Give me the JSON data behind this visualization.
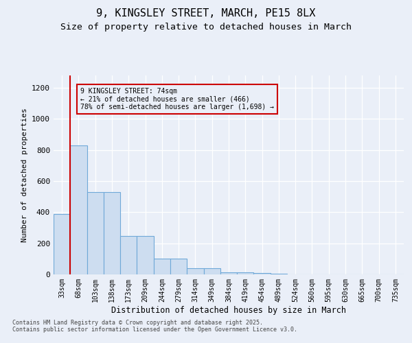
{
  "title1": "9, KINGSLEY STREET, MARCH, PE15 8LX",
  "title2": "Size of property relative to detached houses in March",
  "xlabel": "Distribution of detached houses by size in March",
  "ylabel": "Number of detached properties",
  "categories": [
    "33sqm",
    "68sqm",
    "103sqm",
    "138sqm",
    "173sqm",
    "209sqm",
    "244sqm",
    "279sqm",
    "314sqm",
    "349sqm",
    "384sqm",
    "419sqm",
    "454sqm",
    "489sqm",
    "524sqm",
    "560sqm",
    "595sqm",
    "630sqm",
    "665sqm",
    "700sqm",
    "735sqm"
  ],
  "values": [
    390,
    830,
    530,
    530,
    245,
    245,
    100,
    100,
    40,
    40,
    15,
    15,
    8,
    5,
    2,
    0,
    0,
    0,
    0,
    0,
    0
  ],
  "bar_color": "#cdddf0",
  "bar_edge_color": "#6fa8d8",
  "vline_color": "#cc0000",
  "annotation_text": "9 KINGSLEY STREET: 74sqm\n← 21% of detached houses are smaller (466)\n78% of semi-detached houses are larger (1,698) →",
  "annotation_box_color": "#cc0000",
  "ylim": [
    0,
    1280
  ],
  "yticks": [
    0,
    200,
    400,
    600,
    800,
    1000,
    1200
  ],
  "background_color": "#eaeff8",
  "grid_color": "#ffffff",
  "footer_text": "Contains HM Land Registry data © Crown copyright and database right 2025.\nContains public sector information licensed under the Open Government Licence v3.0.",
  "title_fontsize": 11,
  "subtitle_fontsize": 9.5
}
